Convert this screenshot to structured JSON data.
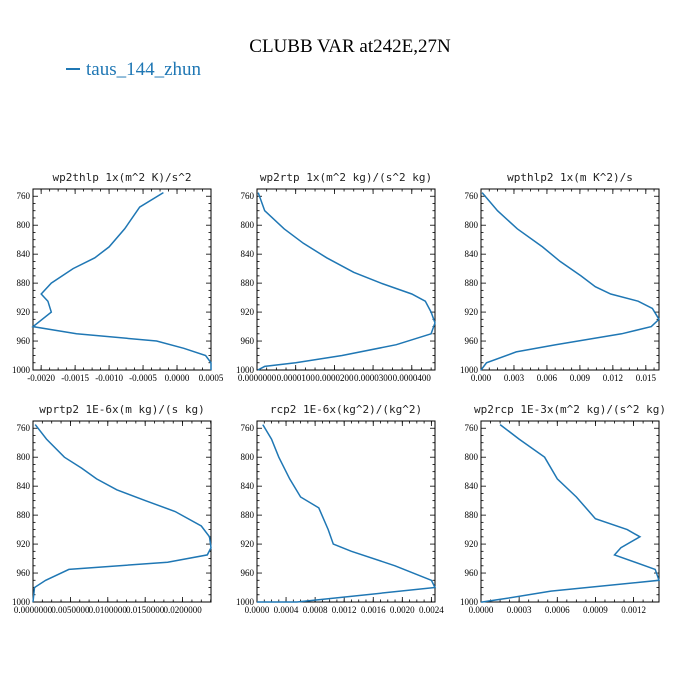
{
  "figure": {
    "title": "CLUBB VAR at242E,27N",
    "legend_label": "taus_144_zhun",
    "line_color": "#1f77b4"
  },
  "chart_data": [
    {
      "type": "line",
      "title": "wp2thlp  1x(m^2 K)/s^2",
      "series": [
        {
          "name": "taus_144_zhun",
          "x": [
            -0.0002,
            -0.00055,
            -0.00077,
            -0.001,
            -0.00121,
            -0.00153,
            -0.00185,
            -0.002,
            -0.0019,
            -0.00185,
            -0.00212,
            -0.00148,
            -0.0003,
            0.0001,
            0.00042,
            0.0005,
            0.0005
          ],
          "y": [
            755,
            775,
            805,
            830,
            845,
            860,
            880,
            895,
            905,
            920,
            940,
            950,
            960,
            970,
            980,
            990,
            1000
          ]
        }
      ],
      "xlim": [
        -0.00212,
        0.0005
      ],
      "ylim": [
        750,
        1000
      ],
      "yticks": [
        760,
        800,
        840,
        880,
        920,
        960,
        1000
      ],
      "xticks": [
        -0.002,
        -0.0015,
        -0.001,
        -0.0005,
        0,
        0.0005
      ],
      "xtick_labels": [
        "-0.0020",
        "-0.0015",
        "-0.0010",
        "-0.0005",
        "0.0000",
        "0.0005"
      ]
    },
    {
      "type": "line",
      "title": "wp2rtp  1x(m^2 kg)/(s^2 kg)",
      "series": [
        {
          "name": "taus_144_zhun",
          "x": [
            3e-07,
            2e-06,
            7e-06,
            1.2e-05,
            1.8e-05,
            2.5e-05,
            3.2e-05,
            4e-05,
            4.35e-05,
            4.5e-05,
            4.6e-05,
            4.5e-05,
            3.6e-05,
            2.2e-05,
            1e-05,
            2e-06,
            2e-07
          ],
          "y": [
            755,
            780,
            805,
            825,
            845,
            865,
            880,
            895,
            905,
            920,
            935,
            950,
            965,
            980,
            990,
            995,
            1000
          ]
        }
      ],
      "xlim": [
        0,
        4.6e-05
      ],
      "ylim": [
        750,
        1000
      ],
      "yticks": [
        760,
        800,
        840,
        880,
        920,
        960,
        1000
      ],
      "xticks": [
        0,
        1e-05,
        2e-05,
        3e-05,
        4e-05
      ],
      "xtick_labels": [
        "0.0000000",
        "0.0000100",
        "0.0000200",
        "0.0000300",
        "0.0000400"
      ]
    },
    {
      "type": "line",
      "title": "wpthlp2  1x(m K^2)/s",
      "series": [
        {
          "name": "taus_144_zhun",
          "x": [
            0.0001,
            0.0015,
            0.0033,
            0.0056,
            0.0072,
            0.0091,
            0.0104,
            0.0118,
            0.0143,
            0.0156,
            0.0162,
            0.0155,
            0.0128,
            0.0068,
            0.0032,
            0.0005,
            0.0
          ],
          "y": [
            755,
            780,
            805,
            830,
            850,
            870,
            885,
            895,
            905,
            915,
            930,
            940,
            950,
            965,
            975,
            990,
            1000
          ]
        }
      ],
      "xlim": [
        0,
        0.0162
      ],
      "ylim": [
        750,
        1000
      ],
      "yticks": [
        760,
        800,
        840,
        880,
        920,
        960,
        1000
      ],
      "xticks": [
        0,
        0.003,
        0.006,
        0.009,
        0.012,
        0.015
      ],
      "xtick_labels": [
        "0.000",
        "0.003",
        "0.006",
        "0.009",
        "0.012",
        "0.015"
      ]
    },
    {
      "type": "line",
      "title": "wprtp2  1E-6x(m kg)/(s kg)",
      "series": [
        {
          "name": "taus_144_zhun",
          "x": [
            0.0003,
            0.0018,
            0.0042,
            0.0065,
            0.0085,
            0.0112,
            0.015,
            0.019,
            0.0225,
            0.0236,
            0.0238,
            0.0233,
            0.018,
            0.0048,
            0.0017,
            0.0002,
            0.0
          ],
          "y": [
            755,
            775,
            800,
            815,
            830,
            845,
            860,
            875,
            895,
            910,
            925,
            935,
            945,
            955,
            970,
            980,
            1000
          ]
        }
      ],
      "xlim": [
        0,
        0.0238
      ],
      "ylim": [
        750,
        1000
      ],
      "yticks": [
        760,
        800,
        840,
        880,
        920,
        960,
        1000
      ],
      "xticks": [
        0,
        0.005,
        0.01,
        0.015,
        0.02
      ],
      "xtick_labels": [
        "0.0000000",
        "0.0050000",
        "0.0100000",
        "0.0150000",
        "0.0200000"
      ]
    },
    {
      "type": "line",
      "title": "rcp2  1E-6x(kg^2)/(kg^2)",
      "series": [
        {
          "name": "taus_144_zhun",
          "x": [
            8e-05,
            0.0002,
            0.0003,
            0.00045,
            0.0006,
            0.00085,
            0.00098,
            0.00105,
            0.0013,
            0.0019,
            0.0024,
            0.00245,
            0.00055,
            0.0
          ],
          "y": [
            755,
            775,
            800,
            830,
            855,
            870,
            900,
            920,
            930,
            950,
            970,
            980,
            1000,
            1000
          ]
        }
      ],
      "xlim": [
        0,
        0.00245
      ],
      "ylim": [
        750,
        1000
      ],
      "yticks": [
        760,
        800,
        840,
        880,
        920,
        960,
        1000
      ],
      "xticks": [
        0,
        0.0004,
        0.0008,
        0.0012,
        0.0016,
        0.002,
        0.0024
      ],
      "xtick_labels": [
        "0.0000",
        "0.0004",
        "0.0008",
        "0.0012",
        "0.0016",
        "0.0020",
        "0.0024"
      ]
    },
    {
      "type": "line",
      "title": "wp2rcp  1E-3x(m^2 kg)/(s^2 kg)",
      "series": [
        {
          "name": "taus_144_zhun",
          "x": [
            0.00015,
            0.0003,
            0.0005,
            0.0006,
            0.00075,
            0.0009,
            0.00115,
            0.00125,
            0.0011,
            0.00105,
            0.00137,
            0.0014,
            0.00055,
            0.0002,
            1e-05,
            0.0
          ],
          "y": [
            755,
            775,
            800,
            830,
            855,
            885,
            900,
            910,
            925,
            935,
            955,
            970,
            985,
            995,
            1000,
            1000
          ]
        }
      ],
      "xlim": [
        0,
        0.0014
      ],
      "ylim": [
        750,
        1000
      ],
      "yticks": [
        760,
        800,
        840,
        880,
        920,
        960,
        1000
      ],
      "xticks": [
        0,
        0.0003,
        0.0006,
        0.0009,
        0.0012
      ],
      "xtick_labels": [
        "0.0000",
        "0.0003",
        "0.0006",
        "0.0009",
        "0.0012"
      ]
    }
  ]
}
